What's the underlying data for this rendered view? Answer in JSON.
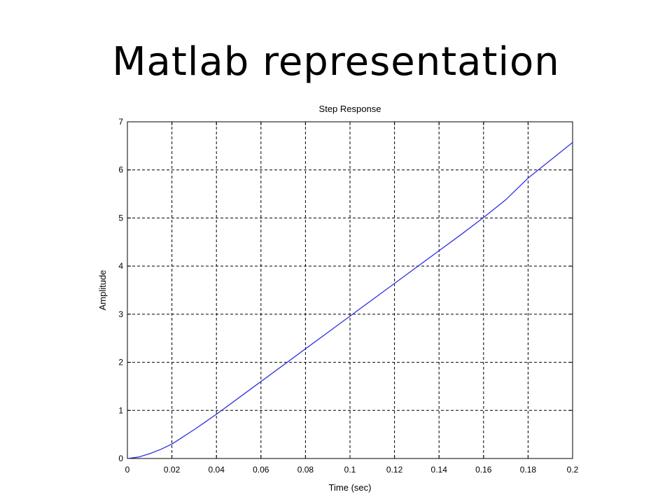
{
  "slide": {
    "title": "Matlab representation"
  },
  "chart_data": {
    "type": "line",
    "title": "Step Response",
    "xlabel": "Time (sec)",
    "ylabel": "Amplitude",
    "xlim": [
      0,
      0.2
    ],
    "ylim": [
      0,
      7
    ],
    "xticks": [
      0,
      0.02,
      0.04,
      0.06,
      0.08,
      0.1,
      0.12,
      0.14,
      0.16,
      0.18,
      0.2
    ],
    "xtick_labels": [
      "0",
      "0.02",
      "0.04",
      "0.06",
      "0.08",
      "0.1",
      "0.12",
      "0.14",
      "0.16",
      "0.18",
      "0.2"
    ],
    "yticks": [
      0,
      1,
      2,
      3,
      4,
      5,
      6,
      7
    ],
    "ytick_labels": [
      "0",
      "1",
      "2",
      "3",
      "4",
      "5",
      "6",
      "7"
    ],
    "grid": true,
    "line_color": "#3030e0",
    "series": [
      {
        "x": [
          0,
          0.005,
          0.01,
          0.015,
          0.02,
          0.025,
          0.03,
          0.035,
          0.04,
          0.05,
          0.06,
          0.07,
          0.08,
          0.09,
          0.1,
          0.11,
          0.12,
          0.13,
          0.14,
          0.15,
          0.16,
          0.17,
          0.18,
          0.19,
          0.2
        ],
        "y": [
          0,
          0.03,
          0.1,
          0.19,
          0.3,
          0.45,
          0.6,
          0.76,
          0.92,
          1.26,
          1.6,
          1.94,
          2.28,
          2.62,
          2.96,
          3.3,
          3.64,
          3.98,
          4.32,
          4.66,
          5.01,
          5.38,
          5.83,
          6.2,
          6.57
        ]
      }
    ]
  }
}
